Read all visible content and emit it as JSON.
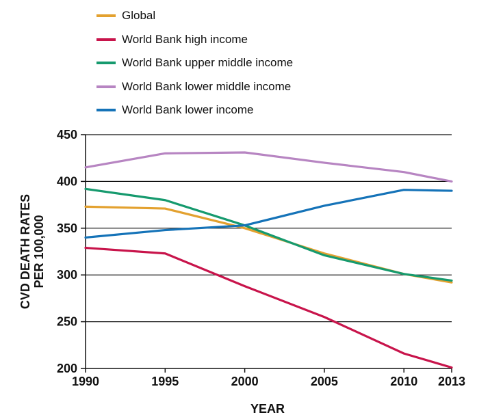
{
  "chart_data": {
    "type": "line",
    "x": [
      1990,
      1995,
      2000,
      2005,
      2010,
      2013
    ],
    "xlabel": "YEAR",
    "ylabel_lines": [
      "CVD DEATH RATES",
      "PER 100,000"
    ],
    "ylim": [
      200,
      450
    ],
    "yticks": [
      200,
      250,
      300,
      350,
      400,
      450
    ],
    "grid": true,
    "legend_position": "top",
    "series": [
      {
        "name": "Global",
        "color": "#E3A12F",
        "values": [
          373,
          371,
          350,
          323,
          301,
          292
        ]
      },
      {
        "name": "World Bank high income",
        "color": "#C8144B",
        "values": [
          329,
          323,
          288,
          255,
          216,
          201
        ]
      },
      {
        "name": "World Bank upper middle income",
        "color": "#169A6E",
        "values": [
          392,
          380,
          353,
          321,
          301,
          294
        ]
      },
      {
        "name": "World Bank lower middle income",
        "color": "#B785C2",
        "values": [
          415,
          430,
          431,
          420,
          410,
          400
        ]
      },
      {
        "name": "World Bank lower income",
        "color": "#1573B8",
        "values": [
          340,
          348,
          353,
          374,
          391,
          390
        ]
      }
    ]
  }
}
